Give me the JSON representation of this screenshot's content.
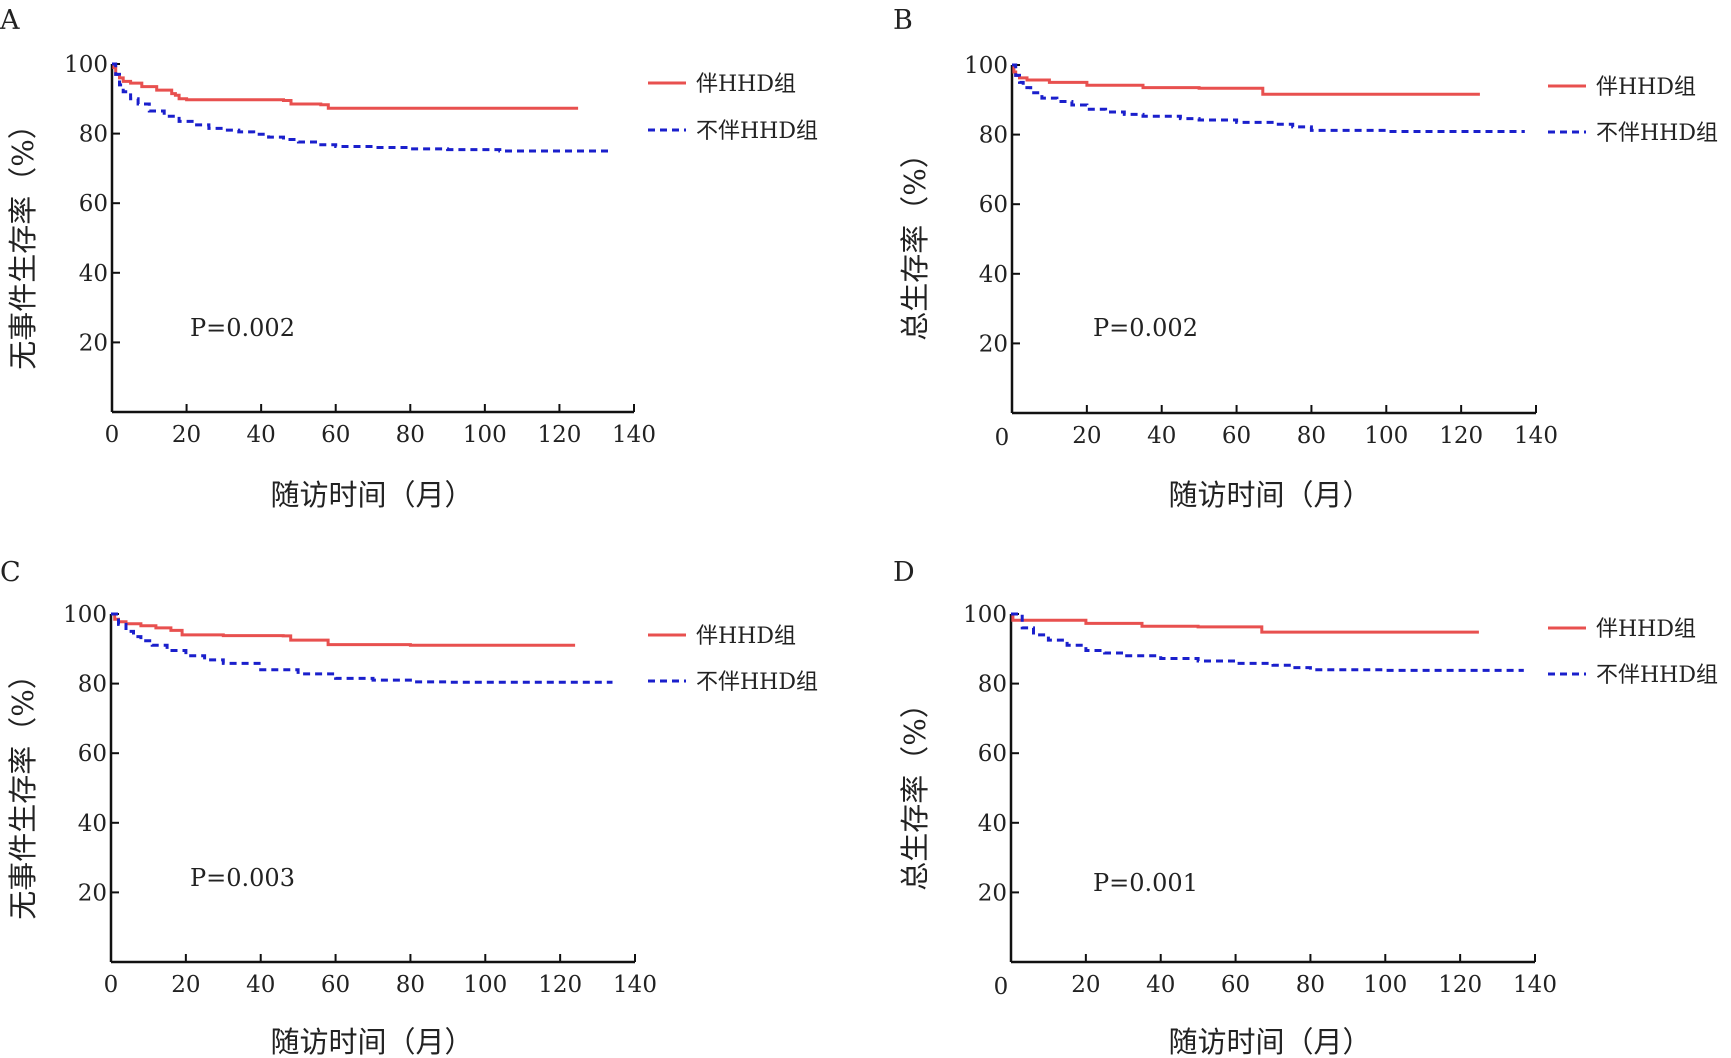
{
  "legend": {
    "group_with": "伴HHD组",
    "group_without": "不伴HHD组"
  },
  "colors": {
    "group_with": "#e8504f",
    "group_without": "#1a1fcc",
    "axis": "#111111"
  },
  "chart_data": [
    {
      "panel": "A",
      "type": "line",
      "ylabel": "无事件生存率（%）",
      "xlabel": "随访时间（月）",
      "xlim": [
        0,
        140
      ],
      "ylim": [
        0,
        100
      ],
      "xticks": [
        0,
        20,
        40,
        60,
        80,
        100,
        120,
        140
      ],
      "yticks": [
        20,
        40,
        60,
        80,
        100
      ],
      "p_value": "P=0.002",
      "series": [
        {
          "name": "伴HHD组",
          "step": true,
          "x": [
            0,
            0.5,
            1,
            2,
            3,
            5,
            8,
            12,
            16,
            17,
            18,
            20,
            30,
            40,
            46,
            48,
            56,
            58,
            70,
            90,
            110,
            125
          ],
          "y": [
            100,
            99,
            97,
            96,
            95,
            94.5,
            93.5,
            92.5,
            91.5,
            91,
            90,
            89.7,
            89.7,
            89.7,
            89.5,
            88.5,
            88.3,
            87.3,
            87.3,
            87.3,
            87.3,
            87.3
          ]
        },
        {
          "name": "不伴HHD组",
          "step": true,
          "x": [
            0,
            1,
            2,
            3,
            5,
            7,
            10,
            14,
            18,
            22,
            26,
            30,
            34,
            38,
            42,
            46,
            50,
            55,
            60,
            70,
            80,
            90,
            100,
            104,
            120,
            134
          ],
          "y": [
            100,
            97,
            94,
            92,
            90,
            88.5,
            86.5,
            85,
            83.5,
            82.5,
            81.5,
            81,
            80.5,
            79.8,
            79,
            78.3,
            77.6,
            76.8,
            76.3,
            76,
            75.6,
            75.4,
            75.4,
            75,
            75,
            75
          ]
        }
      ]
    },
    {
      "panel": "B",
      "type": "line",
      "ylabel": "总生存率（%）",
      "xlabel": "随访时间（月）",
      "xlim": [
        0,
        140
      ],
      "ylim": [
        0,
        100
      ],
      "xticks": [
        20,
        40,
        60,
        80,
        100,
        120,
        140
      ],
      "yticks": [
        20,
        40,
        60,
        80,
        100
      ],
      "x_zero_label": "0",
      "p_value": "P=0.002",
      "series": [
        {
          "name": "伴HHD组",
          "step": true,
          "x": [
            0,
            0.5,
            1,
            2,
            4,
            10,
            20,
            35,
            50,
            67,
            80,
            100,
            125
          ],
          "y": [
            100,
            98,
            97,
            96.3,
            95.7,
            95,
            94.2,
            93.5,
            93.3,
            91.6,
            91.6,
            91.6,
            91.6
          ]
        },
        {
          "name": "不伴HHD组",
          "step": true,
          "x": [
            0,
            1,
            2,
            3,
            5,
            8,
            12,
            16,
            20,
            25,
            30,
            35,
            45,
            50,
            60,
            70,
            75,
            80,
            100,
            120,
            137
          ],
          "y": [
            100,
            97,
            95,
            93.5,
            92,
            90.5,
            89.5,
            88.5,
            87.3,
            86.5,
            85.8,
            85.3,
            84.6,
            84.2,
            83.5,
            83,
            82.2,
            81.2,
            80.9,
            80.9,
            80.9
          ]
        }
      ]
    },
    {
      "panel": "C",
      "type": "line",
      "ylabel": "无事件生存率（%）",
      "xlabel": "随访时间（月）",
      "xlim": [
        0,
        140
      ],
      "ylim": [
        0,
        100
      ],
      "xticks": [
        0,
        20,
        40,
        60,
        80,
        100,
        120,
        140
      ],
      "yticks": [
        20,
        40,
        60,
        80,
        100
      ],
      "p_value": "P=0.003",
      "series": [
        {
          "name": "伴HHD组",
          "step": true,
          "x": [
            0,
            1,
            2,
            4,
            8,
            12,
            16,
            19,
            30,
            46,
            48,
            58,
            80,
            100,
            124
          ],
          "y": [
            100,
            98.5,
            97.8,
            97.2,
            96.6,
            96,
            95.3,
            94,
            93.8,
            93.7,
            92.5,
            91.2,
            91,
            91,
            91
          ]
        },
        {
          "name": "不伴HHD组",
          "step": true,
          "x": [
            0,
            2,
            4,
            6,
            8,
            11,
            15,
            20,
            25,
            30,
            40,
            50,
            60,
            70,
            80,
            90,
            100,
            134
          ],
          "y": [
            100,
            97,
            95,
            93.5,
            92.3,
            91,
            89.5,
            88,
            86.8,
            85.8,
            84,
            82.8,
            81.5,
            81,
            80.5,
            80.4,
            80.4,
            80.4
          ]
        }
      ]
    },
    {
      "panel": "D",
      "type": "line",
      "ylabel": "总生存率（%）",
      "xlabel": "随访时间（月）",
      "xlim": [
        0,
        140
      ],
      "ylim": [
        0,
        100
      ],
      "xticks": [
        20,
        40,
        60,
        80,
        100,
        120,
        140
      ],
      "yticks": [
        20,
        40,
        60,
        80,
        100
      ],
      "x_zero_label": "0",
      "p_value": "P=0.001",
      "series": [
        {
          "name": "伴HHD组",
          "step": true,
          "x": [
            0,
            0.5,
            10,
            20,
            35,
            50,
            67,
            80,
            100,
            125
          ],
          "y": [
            100,
            98.2,
            98.2,
            97.3,
            96.5,
            96.3,
            94.8,
            94.8,
            94.8,
            94.8
          ]
        },
        {
          "name": "不伴HHD组",
          "step": true,
          "x": [
            0,
            3,
            6,
            10,
            15,
            20,
            25,
            30,
            40,
            50,
            60,
            70,
            75,
            80,
            100,
            137
          ],
          "y": [
            100,
            96,
            94,
            92.5,
            91,
            89.5,
            88.8,
            88,
            87.2,
            86.5,
            85.8,
            85.3,
            84.6,
            84,
            83.8,
            83.8
          ]
        }
      ]
    }
  ]
}
